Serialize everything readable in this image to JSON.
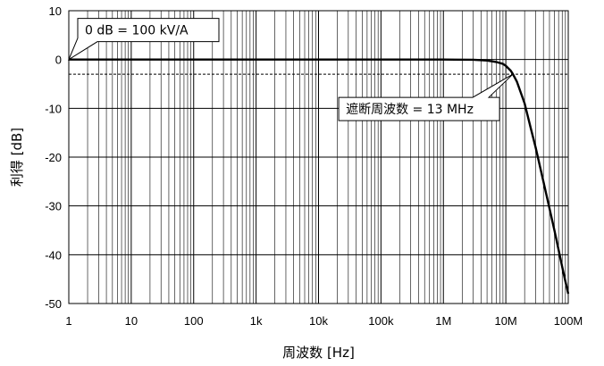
{
  "chart_data": {
    "type": "line",
    "xlabel": "周波数 [Hz]",
    "ylabel": "利得 [dB]",
    "x_scale": "log",
    "xlim": [
      1,
      100000000
    ],
    "ylim": [
      -50,
      10
    ],
    "grid": true,
    "x_ticks": [
      {
        "value": 1,
        "label": "1"
      },
      {
        "value": 10,
        "label": "10"
      },
      {
        "value": 100,
        "label": "100"
      },
      {
        "value": 1000,
        "label": "1k"
      },
      {
        "value": 10000,
        "label": "10k"
      },
      {
        "value": 100000,
        "label": "100k"
      },
      {
        "value": 1000000,
        "label": "1M"
      },
      {
        "value": 10000000,
        "label": "10M"
      },
      {
        "value": 100000000,
        "label": "100M"
      }
    ],
    "y_ticks": [
      {
        "value": 10,
        "label": "10"
      },
      {
        "value": 0,
        "label": "0"
      },
      {
        "value": -10,
        "label": "-10"
      },
      {
        "value": -20,
        "label": "-20"
      },
      {
        "value": -30,
        "label": "-30"
      },
      {
        "value": -40,
        "label": "-40"
      },
      {
        "value": -50,
        "label": "-50"
      }
    ],
    "series": [
      {
        "x": [
          1,
          10,
          100,
          1000,
          10000,
          100000,
          1000000,
          3000000,
          5000000,
          7000000,
          9000000,
          10000000,
          12000000,
          13000000,
          15000000,
          20000000,
          25000000,
          30000000,
          40000000,
          50000000,
          60000000,
          70000000,
          80000000,
          90000000,
          100000000
        ],
        "y": [
          0,
          0,
          0,
          0,
          0,
          0,
          0,
          -0.05,
          -0.2,
          -0.5,
          -0.9,
          -1.3,
          -2.3,
          -3,
          -4.5,
          -9,
          -14,
          -18,
          -25,
          -30.5,
          -35,
          -39,
          -42.5,
          -45.5,
          -48
        ]
      }
    ],
    "reference_line": {
      "y": -3
    },
    "annotations": [
      {
        "text": "0 dB = 100 kV/A",
        "x": 1,
        "y": 0
      },
      {
        "text": "遮断周波数 = 13 MHz",
        "x": 13000000,
        "y": -3
      }
    ]
  }
}
